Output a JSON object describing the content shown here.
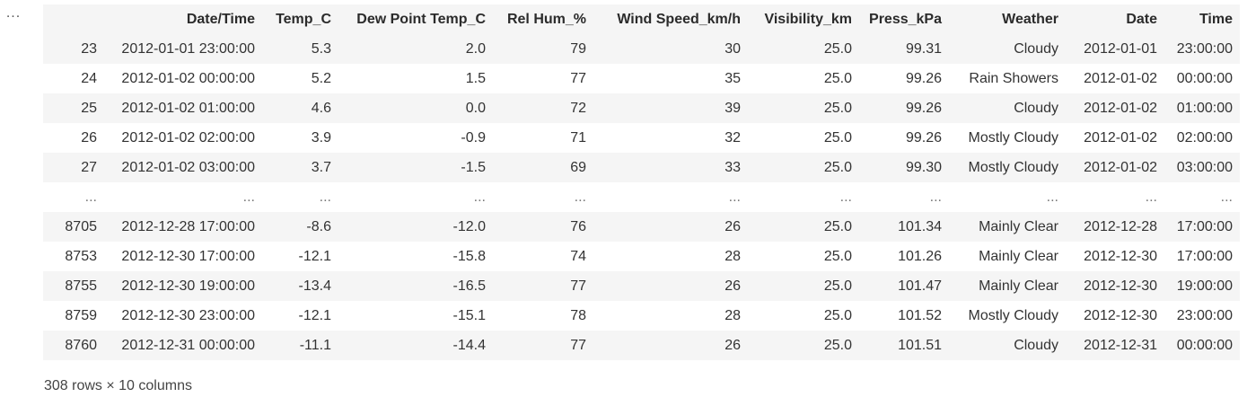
{
  "gutter": {
    "ellipsis": "..."
  },
  "table": {
    "columns": [
      "",
      "Date/Time",
      "Temp_C",
      "Dew Point Temp_C",
      "Rel Hum_%",
      "Wind Speed_km/h",
      "Visibility_km",
      "Press_kPa",
      "Weather",
      "Date",
      "Time"
    ],
    "rows": [
      [
        "23",
        "2012-01-01 23:00:00",
        "5.3",
        "2.0",
        "79",
        "30",
        "25.0",
        "99.31",
        "Cloudy",
        "2012-01-01",
        "23:00:00"
      ],
      [
        "24",
        "2012-01-02 00:00:00",
        "5.2",
        "1.5",
        "77",
        "35",
        "25.0",
        "99.26",
        "Rain Showers",
        "2012-01-02",
        "00:00:00"
      ],
      [
        "25",
        "2012-01-02 01:00:00",
        "4.6",
        "0.0",
        "72",
        "39",
        "25.0",
        "99.26",
        "Cloudy",
        "2012-01-02",
        "01:00:00"
      ],
      [
        "26",
        "2012-01-02 02:00:00",
        "3.9",
        "-0.9",
        "71",
        "32",
        "25.0",
        "99.26",
        "Mostly Cloudy",
        "2012-01-02",
        "02:00:00"
      ],
      [
        "27",
        "2012-01-02 03:00:00",
        "3.7",
        "-1.5",
        "69",
        "33",
        "25.0",
        "99.30",
        "Mostly Cloudy",
        "2012-01-02",
        "03:00:00"
      ],
      [
        "...",
        "...",
        "...",
        "...",
        "...",
        "...",
        "...",
        "...",
        "...",
        "...",
        "..."
      ],
      [
        "8705",
        "2012-12-28 17:00:00",
        "-8.6",
        "-12.0",
        "76",
        "26",
        "25.0",
        "101.34",
        "Mainly Clear",
        "2012-12-28",
        "17:00:00"
      ],
      [
        "8753",
        "2012-12-30 17:00:00",
        "-12.1",
        "-15.8",
        "74",
        "28",
        "25.0",
        "101.26",
        "Mainly Clear",
        "2012-12-30",
        "17:00:00"
      ],
      [
        "8755",
        "2012-12-30 19:00:00",
        "-13.4",
        "-16.5",
        "77",
        "26",
        "25.0",
        "101.47",
        "Mainly Clear",
        "2012-12-30",
        "19:00:00"
      ],
      [
        "8759",
        "2012-12-30 23:00:00",
        "-12.1",
        "-15.1",
        "78",
        "28",
        "25.0",
        "101.52",
        "Mostly Cloudy",
        "2012-12-30",
        "23:00:00"
      ],
      [
        "8760",
        "2012-12-31 00:00:00",
        "-11.1",
        "-14.4",
        "77",
        "26",
        "25.0",
        "101.51",
        "Cloudy",
        "2012-12-31",
        "00:00:00"
      ]
    ]
  },
  "caption": {
    "shape": "308 rows × 10 columns"
  },
  "colors": {
    "stripe": "#f5f5f5",
    "text": "#333333"
  }
}
